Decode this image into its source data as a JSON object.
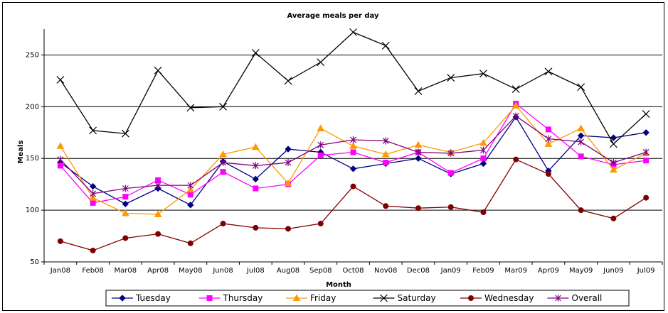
{
  "chart_data": {
    "type": "line",
    "title": "Average meals per day",
    "xlabel": "Month",
    "ylabel": "Meals",
    "ylim": [
      50,
      275
    ],
    "yticks": [
      50,
      100,
      150,
      200,
      250
    ],
    "grid": true,
    "legend_position": "bottom",
    "categories": [
      "Jan08",
      "Feb08",
      "Mar08",
      "Apr08",
      "May08",
      "Jun08",
      "Jul08",
      "Aug08",
      "Sep08",
      "Oct08",
      "Nov08",
      "Dec08",
      "Jan09",
      "Feb09",
      "Mar09",
      "Apr09",
      "May09",
      "Jun09",
      "Jul09"
    ],
    "series": [
      {
        "name": "Tuesday",
        "color": "#000080",
        "marker": "diamond",
        "values": [
          146,
          123,
          106,
          121,
          105,
          147,
          130,
          159,
          156,
          140,
          145,
          150,
          135,
          145,
          190,
          138,
          172,
          170,
          175
        ]
      },
      {
        "name": "Thursday",
        "color": "#ff00ff",
        "marker": "square",
        "values": [
          143,
          107,
          113,
          129,
          115,
          137,
          121,
          125,
          153,
          156,
          146,
          156,
          136,
          150,
          203,
          178,
          152,
          144,
          148
        ]
      },
      {
        "name": "Friday",
        "color": "#ff9900",
        "marker": "triangle",
        "values": [
          162,
          112,
          97,
          96,
          120,
          154,
          161,
          126,
          179,
          162,
          154,
          163,
          156,
          165,
          201,
          164,
          179,
          139,
          155
        ]
      },
      {
        "name": "Saturday",
        "color": "#000000",
        "marker": "x",
        "values": [
          226,
          177,
          174,
          235,
          199,
          200,
          252,
          225,
          243,
          272,
          259,
          215,
          228,
          232,
          217,
          234,
          219,
          164,
          193
        ]
      },
      {
        "name": "Wednesday",
        "color": "#800000",
        "marker": "circle",
        "values": [
          70,
          61,
          73,
          77,
          68,
          87,
          83,
          82,
          87,
          123,
          104,
          102,
          103,
          98,
          149,
          135,
          100,
          92,
          112
        ]
      },
      {
        "name": "Overall",
        "color": "#800080",
        "marker": "star",
        "values": [
          149,
          116,
          121,
          124,
          124,
          146,
          143,
          146,
          163,
          168,
          167,
          156,
          155,
          158,
          191,
          169,
          166,
          146,
          156
        ]
      }
    ]
  }
}
